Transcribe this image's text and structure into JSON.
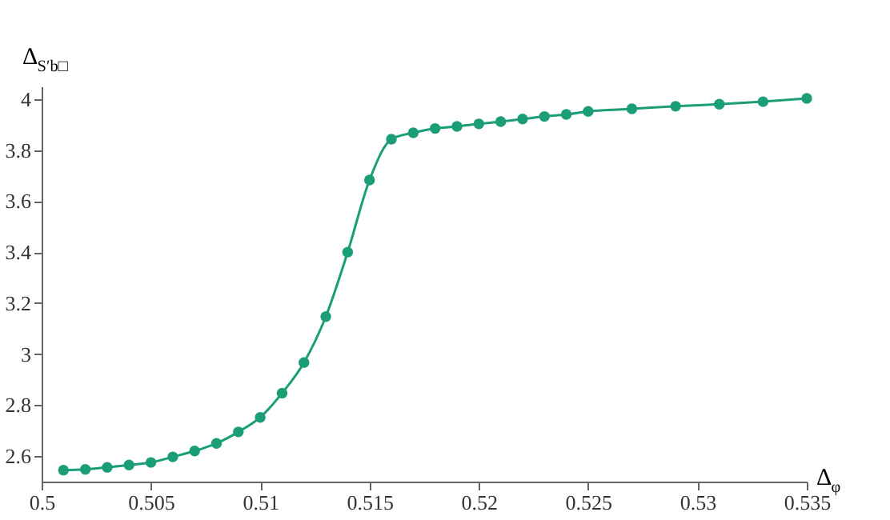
{
  "chart_data": {
    "type": "line",
    "xlabel": "Δ$_{φ}$",
    "ylabel": "Δ$_{S′b□}$",
    "x": [
      0.501,
      0.502,
      0.503,
      0.504,
      0.505,
      0.506,
      0.507,
      0.508,
      0.509,
      0.51,
      0.511,
      0.512,
      0.513,
      0.514,
      0.515,
      0.516,
      0.517,
      0.518,
      0.519,
      0.52,
      0.521,
      0.522,
      0.523,
      0.524,
      0.525,
      0.527,
      0.529,
      0.531,
      0.533,
      0.535
    ],
    "series": [
      {
        "color": "#1b9e77",
        "values": [
          2.545,
          2.548,
          2.556,
          2.565,
          2.575,
          2.597,
          2.62,
          2.65,
          2.695,
          2.752,
          2.847,
          2.967,
          3.147,
          3.4,
          3.683,
          3.843,
          3.868,
          3.885,
          3.893,
          3.903,
          3.912,
          3.922,
          3.932,
          3.94,
          3.952,
          3.962,
          3.972,
          3.98,
          3.99,
          4.003
        ]
      }
    ],
    "xlim": [
      0.5,
      0.535
    ],
    "ylim": [
      2.5,
      4.05
    ],
    "xticks": [
      0.5,
      0.505,
      0.51,
      0.515,
      0.52,
      0.525,
      0.53,
      0.535
    ],
    "yticks": [
      2.6,
      2.8,
      3,
      3.2,
      3.4,
      3.6,
      3.8,
      4
    ],
    "grid": false,
    "legend": false,
    "marker": "circle",
    "line_style": "solid"
  }
}
